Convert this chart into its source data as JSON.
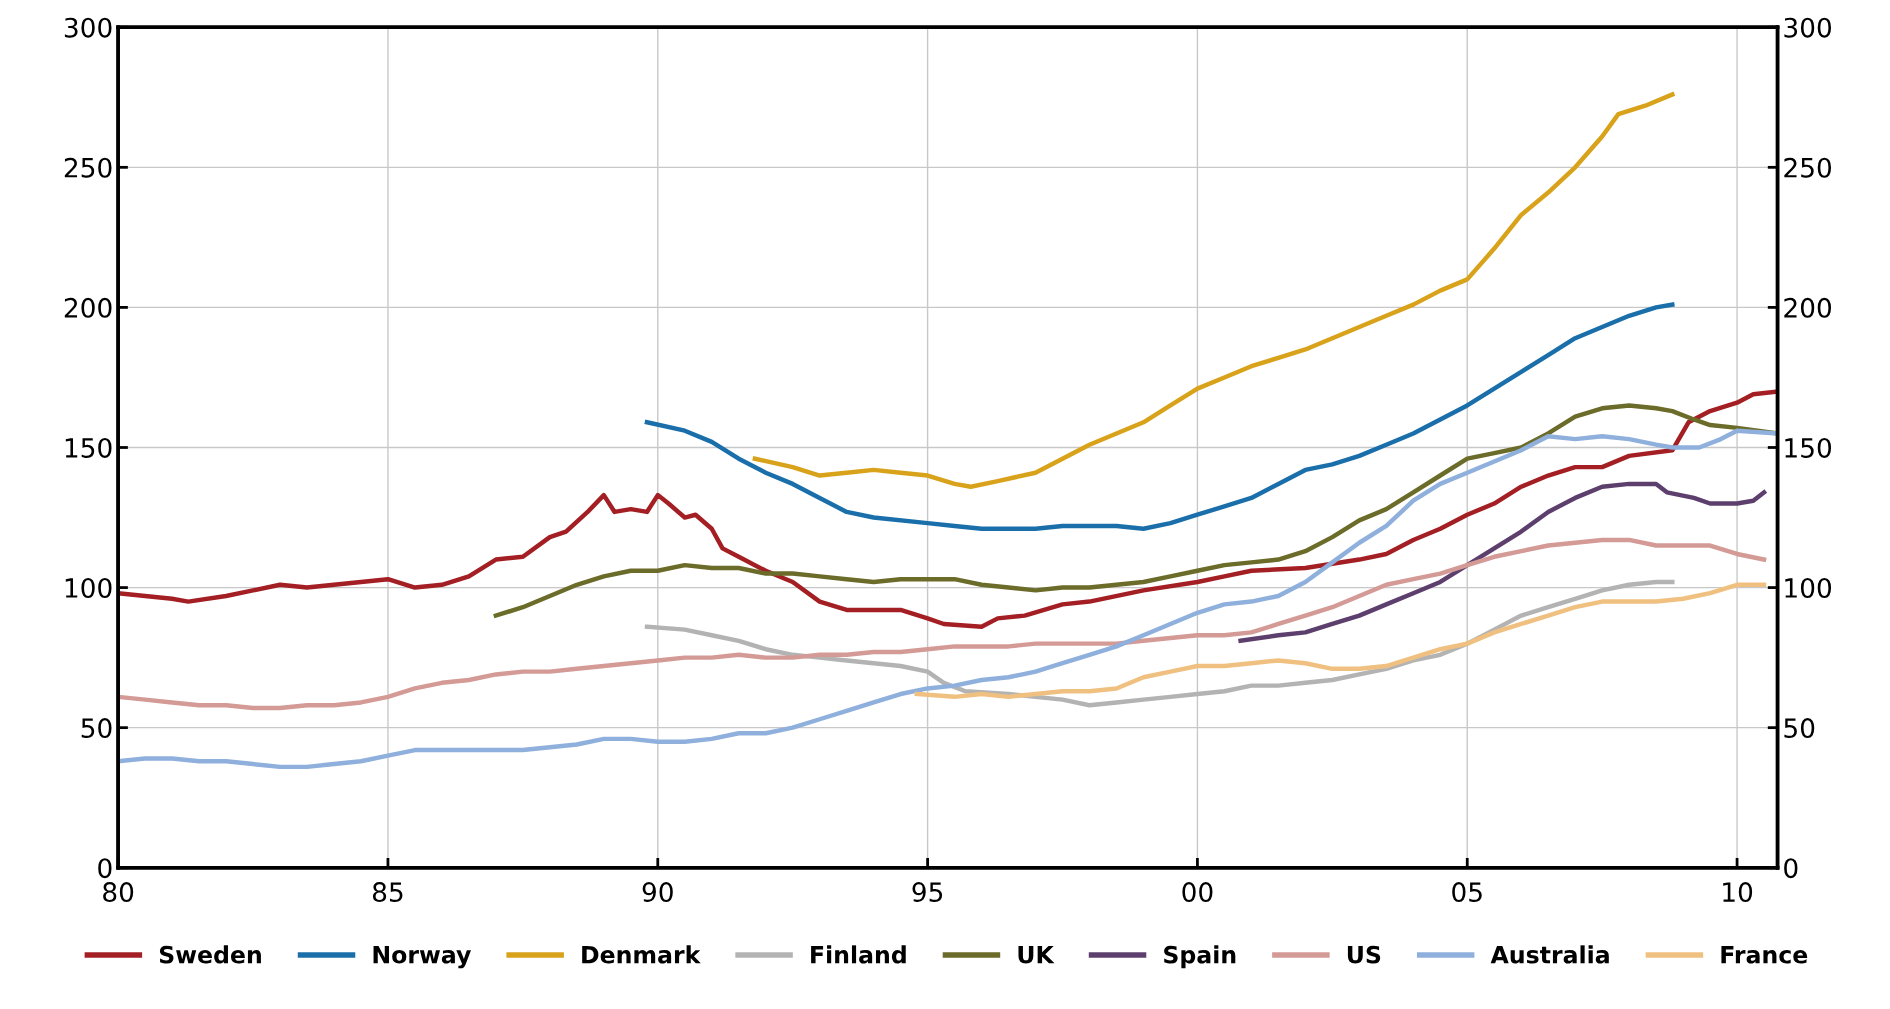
{
  "chart_data": {
    "type": "line",
    "xlim": [
      1980,
      2010.75
    ],
    "xticks": [
      {
        "value": 1980,
        "label": "80"
      },
      {
        "value": 1985,
        "label": "85"
      },
      {
        "value": 1990,
        "label": "90"
      },
      {
        "value": 1995,
        "label": "95"
      },
      {
        "value": 2000,
        "label": "00"
      },
      {
        "value": 2005,
        "label": "05"
      },
      {
        "value": 2010,
        "label": "10"
      }
    ],
    "ylim": [
      0,
      300
    ],
    "yticks": [
      0,
      50,
      100,
      150,
      200,
      250,
      300
    ],
    "y2lim": [
      0,
      300
    ],
    "y2ticks": [
      0,
      50,
      100,
      150,
      200,
      250,
      300
    ],
    "grid": true,
    "legend": "bottom",
    "marker": "none",
    "line_style": "solid",
    "series": [
      {
        "name": "Sweden",
        "color": "#a31f24",
        "x": [
          1980,
          1981,
          1981.3,
          1982,
          1982.5,
          1983,
          1983.5,
          1984,
          1984.5,
          1985,
          1985.5,
          1986,
          1986.5,
          1987,
          1987.5,
          1988,
          1988.3,
          1988.7,
          1989,
          1989.2,
          1989.5,
          1989.8,
          1990,
          1990.2,
          1990.5,
          1990.7,
          1991,
          1991.2,
          1991.5,
          1992,
          1992.5,
          1993,
          1993.5,
          1994,
          1994.5,
          1995,
          1995.3,
          1996,
          1996.3,
          1996.8,
          1997.5,
          1998,
          1999,
          2000,
          2000.5,
          2001,
          2002,
          2003,
          2003.5,
          2004,
          2004.5,
          2005,
          2005.5,
          2006,
          2006.5,
          2007,
          2007.5,
          2008,
          2008.8,
          2009.1,
          2009.5,
          2010,
          2010.3,
          2010.75
        ],
        "values": [
          98,
          96,
          95,
          97,
          99,
          101,
          100,
          101,
          102,
          103,
          100,
          101,
          104,
          110,
          111,
          118,
          120,
          127,
          133,
          127,
          128,
          127,
          133,
          130,
          125,
          126,
          121,
          114,
          111,
          106,
          102,
          95,
          92,
          92,
          92,
          89,
          87,
          86,
          89,
          90,
          94,
          95,
          99,
          102,
          104,
          106,
          107,
          110,
          112,
          117,
          121,
          126,
          130,
          136,
          140,
          143,
          143,
          147,
          149,
          159,
          163,
          166,
          169,
          170
        ]
      },
      {
        "name": "Norway",
        "color": "#1a6fab",
        "x": [
          1989.8,
          1990.5,
          1991,
          1991.5,
          1992,
          1992.5,
          1993,
          1993.5,
          1994,
          1995,
          1995.5,
          1996,
          1996.5,
          1997,
          1997.5,
          1998,
          1998.5,
          1999,
          1999.5,
          2000,
          2000.5,
          2001,
          2001.5,
          2002,
          2002.5,
          2003,
          2003.5,
          2004,
          2004.5,
          2005,
          2005.5,
          2006,
          2006.5,
          2007,
          2007.5,
          2008,
          2008.5,
          2008.8
        ],
        "values": [
          159,
          156,
          152,
          146,
          141,
          137,
          132,
          127,
          125,
          123,
          122,
          121,
          121,
          121,
          122,
          122,
          122,
          121,
          123,
          126,
          129,
          132,
          137,
          142,
          144,
          147,
          151,
          155,
          160,
          165,
          171,
          177,
          183,
          189,
          193,
          197,
          200,
          201
        ]
      },
      {
        "name": "Denmark",
        "color": "#d9a21b",
        "x": [
          1991.8,
          1992.5,
          1993,
          1993.5,
          1994,
          1994.5,
          1995,
          1995.5,
          1995.8,
          1996.3,
          1997,
          1997.5,
          1998,
          1998.5,
          1999,
          1999.5,
          2000,
          2000.5,
          2001,
          2001.5,
          2002,
          2002.5,
          2003,
          2003.5,
          2004,
          2004.5,
          2005,
          2005.5,
          2006,
          2006.5,
          2007,
          2007.5,
          2007.8,
          2008.3,
          2008.8
        ],
        "values": [
          146,
          143,
          140,
          141,
          142,
          141,
          140,
          137,
          136,
          138,
          141,
          146,
          151,
          155,
          159,
          165,
          171,
          175,
          179,
          182,
          185,
          189,
          193,
          197,
          201,
          206,
          210,
          221,
          233,
          241,
          250,
          261,
          269,
          272,
          276
        ]
      },
      {
        "name": "Finland",
        "color": "#b3b3b3",
        "x": [
          1989.8,
          1990.5,
          1991,
          1991.5,
          1992,
          1992.5,
          1993,
          1993.5,
          1994,
          1994.5,
          1995,
          1995.3,
          1995.7,
          1996.5,
          1997,
          1997.5,
          1998,
          1998.5,
          1999,
          1999.5,
          2000,
          2000.5,
          2001,
          2001.5,
          2002,
          2002.5,
          2003,
          2003.5,
          2004,
          2004.5,
          2005,
          2005.5,
          2006,
          2006.5,
          2007,
          2007.5,
          2008,
          2008.5,
          2008.8
        ],
        "values": [
          86,
          85,
          83,
          81,
          78,
          76,
          75,
          74,
          73,
          72,
          70,
          66,
          63,
          62,
          61,
          60,
          58,
          59,
          60,
          61,
          62,
          63,
          65,
          65,
          66,
          67,
          69,
          71,
          74,
          76,
          80,
          85,
          90,
          93,
          96,
          99,
          101,
          102,
          102
        ]
      },
      {
        "name": "UK",
        "color": "#6b6b2a",
        "x": [
          1987,
          1987.5,
          1988,
          1988.5,
          1989,
          1989.5,
          1990,
          1990.5,
          1991,
          1991.5,
          1992,
          1992.5,
          1993,
          1993.5,
          1994,
          1994.5,
          1995,
          1995.5,
          1996,
          1996.5,
          1997,
          1997.5,
          1998,
          1998.5,
          1999,
          1999.5,
          2000,
          2000.5,
          2001,
          2001.5,
          2002,
          2002.5,
          2003,
          2003.5,
          2004,
          2004.5,
          2005,
          2005.5,
          2006,
          2006.5,
          2007,
          2007.5,
          2008,
          2008.5,
          2008.8,
          2009.2,
          2009.5,
          2010,
          2010.75
        ],
        "values": [
          90,
          93,
          97,
          101,
          104,
          106,
          106,
          108,
          107,
          107,
          105,
          105,
          104,
          103,
          102,
          103,
          103,
          103,
          101,
          100,
          99,
          100,
          100,
          101,
          102,
          104,
          106,
          108,
          109,
          110,
          113,
          118,
          124,
          128,
          134,
          140,
          146,
          148,
          150,
          155,
          161,
          164,
          165,
          164,
          163,
          160,
          158,
          157,
          155
        ]
      },
      {
        "name": "Spain",
        "color": "#5d3f6e",
        "x": [
          2000.8,
          2001.5,
          2002,
          2002.5,
          2003,
          2003.5,
          2004,
          2004.5,
          2005,
          2005.5,
          2006,
          2006.5,
          2007,
          2007.5,
          2008,
          2008.5,
          2008.7,
          2009.2,
          2009.5,
          2010,
          2010.3,
          2010.5
        ],
        "values": [
          81,
          83,
          84,
          87,
          90,
          94,
          98,
          102,
          108,
          114,
          120,
          127,
          132,
          136,
          137,
          137,
          134,
          132,
          130,
          130,
          131,
          134
        ]
      },
      {
        "name": "US",
        "color": "#d49a96",
        "x": [
          1980,
          1980.5,
          1981,
          1981.5,
          1982,
          1982.5,
          1983,
          1983.5,
          1984,
          1984.5,
          1985,
          1985.5,
          1986,
          1986.5,
          1987,
          1987.5,
          1988,
          1988.5,
          1989,
          1989.5,
          1990,
          1990.5,
          1991,
          1991.5,
          1992,
          1992.5,
          1993,
          1993.5,
          1994,
          1994.5,
          1995,
          1995.5,
          1996,
          1996.5,
          1997,
          1997.5,
          1998,
          1998.5,
          1999,
          1999.5,
          2000,
          2000.5,
          2001,
          2001.5,
          2002,
          2002.5,
          2003,
          2003.5,
          2004,
          2004.5,
          2005,
          2005.5,
          2006,
          2006.5,
          2007,
          2007.5,
          2008,
          2008.5,
          2009,
          2009.5,
          2010,
          2010.5
        ],
        "values": [
          61,
          60,
          59,
          58,
          58,
          57,
          57,
          58,
          58,
          59,
          61,
          64,
          66,
          67,
          69,
          70,
          70,
          71,
          72,
          73,
          74,
          75,
          75,
          76,
          75,
          75,
          76,
          76,
          77,
          77,
          78,
          79,
          79,
          79,
          80,
          80,
          80,
          80,
          81,
          82,
          83,
          83,
          84,
          87,
          90,
          93,
          97,
          101,
          103,
          105,
          108,
          111,
          113,
          115,
          116,
          117,
          117,
          115,
          115,
          115,
          112,
          110
        ]
      },
      {
        "name": "Australia",
        "color": "#8fb0dc",
        "x": [
          1980,
          1980.5,
          1981,
          1981.5,
          1982,
          1982.5,
          1983,
          1983.5,
          1984,
          1984.5,
          1985,
          1985.5,
          1986,
          1986.5,
          1987,
          1987.5,
          1988,
          1988.5,
          1989,
          1989.5,
          1990,
          1990.5,
          1991,
          1991.5,
          1992,
          1992.5,
          1993,
          1993.5,
          1994,
          1994.5,
          1995,
          1995.5,
          1996,
          1996.5,
          1997,
          1997.5,
          1998,
          1998.5,
          1999,
          1999.5,
          2000,
          2000.5,
          2001,
          2001.5,
          2002,
          2002.5,
          2003,
          2003.5,
          2004,
          2004.5,
          2005,
          2005.5,
          2006,
          2006.5,
          2007,
          2007.5,
          2008,
          2008.5,
          2008.8,
          2009.3,
          2009.7,
          2010,
          2010.75
        ],
        "values": [
          38,
          39,
          39,
          38,
          38,
          37,
          36,
          36,
          37,
          38,
          40,
          42,
          42,
          42,
          42,
          42,
          43,
          44,
          46,
          46,
          45,
          45,
          46,
          48,
          48,
          50,
          53,
          56,
          59,
          62,
          64,
          65,
          67,
          68,
          70,
          73,
          76,
          79,
          83,
          87,
          91,
          94,
          95,
          97,
          102,
          109,
          116,
          122,
          131,
          137,
          141,
          145,
          149,
          154,
          153,
          154,
          153,
          151,
          150,
          150,
          153,
          156,
          155
        ]
      },
      {
        "name": "France",
        "color": "#f0c080",
        "x": [
          1994.8,
          1995.5,
          1996,
          1996.5,
          1997,
          1997.5,
          1998,
          1998.5,
          1999,
          1999.5,
          2000,
          2000.5,
          2001,
          2001.5,
          2002,
          2002.5,
          2003,
          2003.5,
          2004,
          2004.5,
          2005,
          2005.5,
          2006,
          2006.5,
          2007,
          2007.5,
          2008,
          2008.5,
          2009,
          2009.5,
          2010,
          2010.5
        ],
        "values": [
          62,
          61,
          62,
          61,
          62,
          63,
          63,
          64,
          68,
          70,
          72,
          72,
          73,
          74,
          73,
          71,
          71,
          72,
          75,
          78,
          80,
          84,
          87,
          90,
          93,
          95,
          95,
          95,
          96,
          98,
          101,
          101
        ]
      }
    ]
  }
}
